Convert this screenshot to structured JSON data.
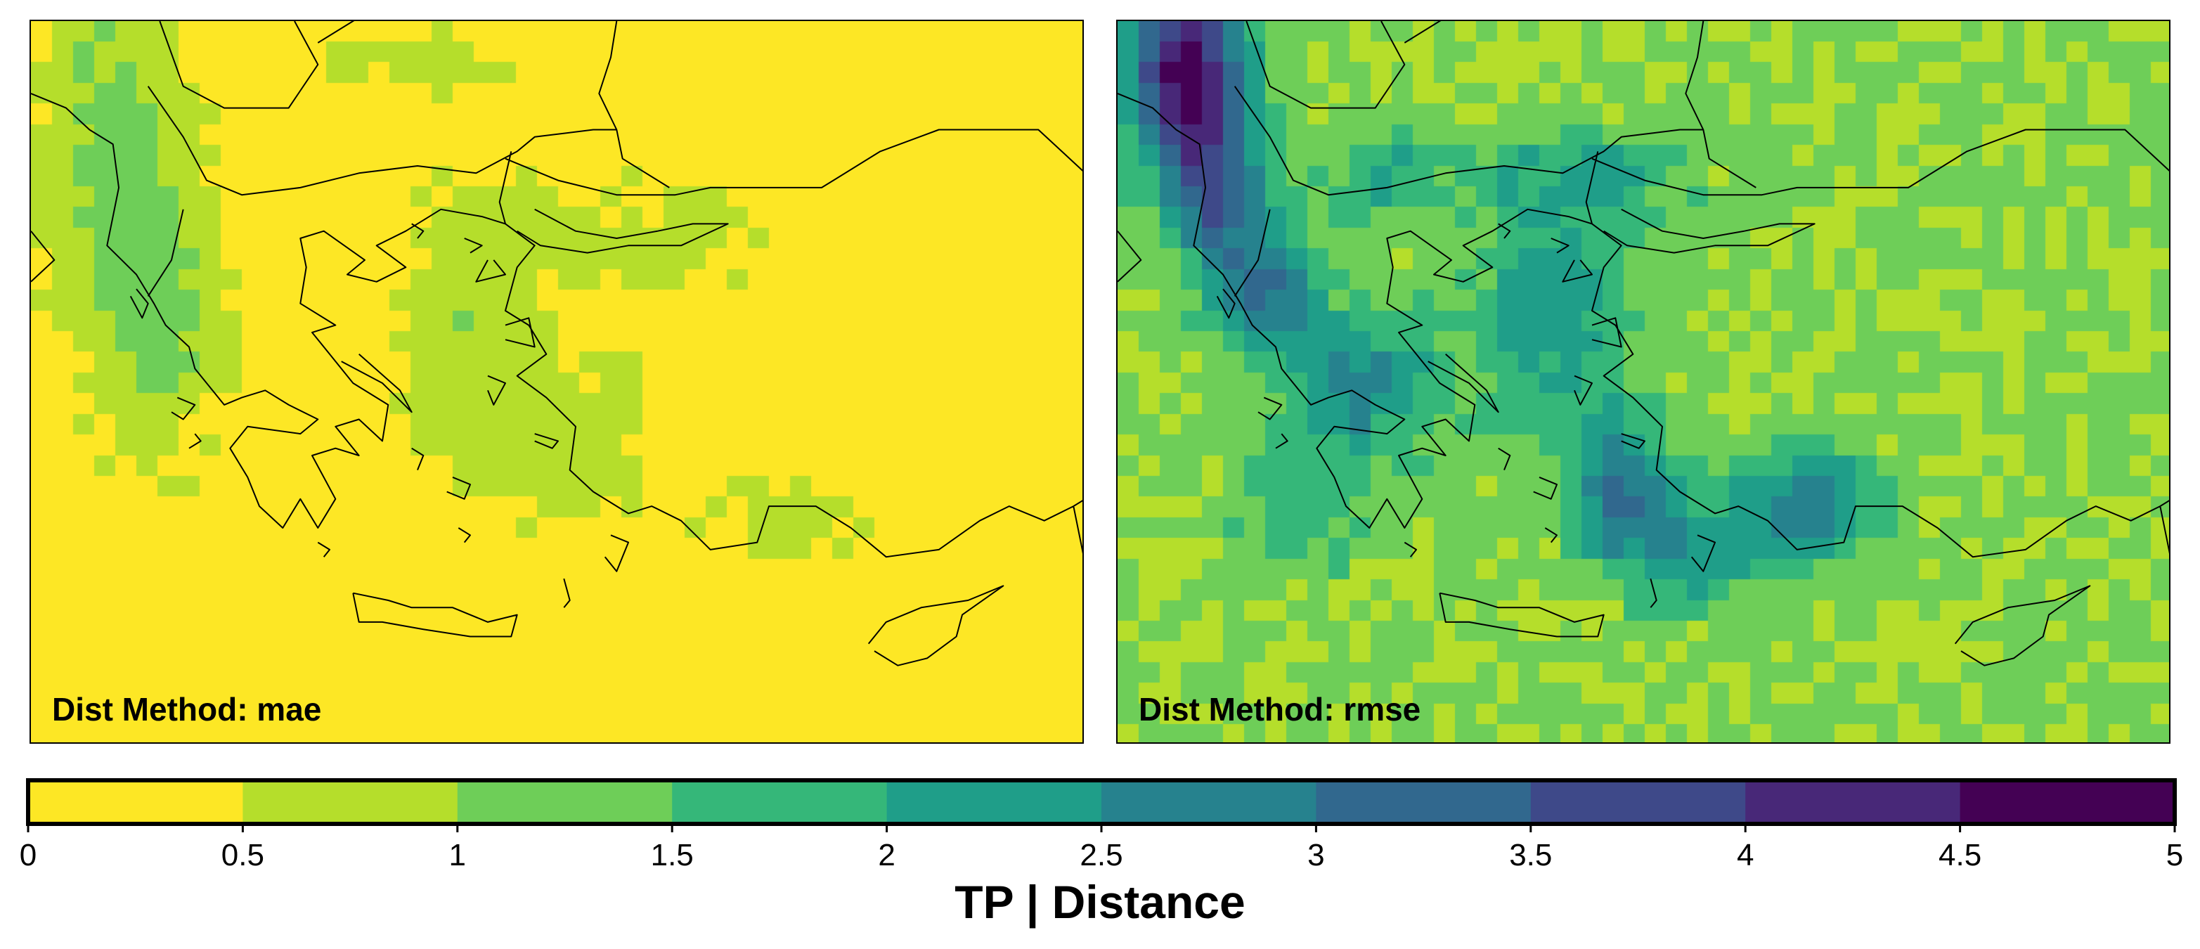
{
  "panels": [
    {
      "label": "Dist Method: mae",
      "key": "mae"
    },
    {
      "label": "Dist Method: rmse",
      "key": "rmse"
    }
  ],
  "colorbar": {
    "title": "TP | Distance",
    "ticks": [
      "0",
      "0.5",
      "1",
      "1.5",
      "2",
      "2.5",
      "3",
      "3.5",
      "4",
      "4.5",
      "5"
    ],
    "bins": [
      {
        "range": [
          0,
          0.5
        ],
        "color": "#fde725"
      },
      {
        "range": [
          0.5,
          1
        ],
        "color": "#b5de2b"
      },
      {
        "range": [
          1,
          1.5
        ],
        "color": "#6ece58"
      },
      {
        "range": [
          1.5,
          2
        ],
        "color": "#35b779"
      },
      {
        "range": [
          2,
          2.5
        ],
        "color": "#1f9e89"
      },
      {
        "range": [
          2.5,
          3
        ],
        "color": "#26828e"
      },
      {
        "range": [
          3,
          3.5
        ],
        "color": "#31688e"
      },
      {
        "range": [
          3.5,
          4
        ],
        "color": "#3e4989"
      },
      {
        "range": [
          4,
          4.5
        ],
        "color": "#482878"
      },
      {
        "range": [
          4.5,
          5
        ],
        "color": "#440154"
      }
    ],
    "vmin": 0,
    "vmax": 5
  }
}
